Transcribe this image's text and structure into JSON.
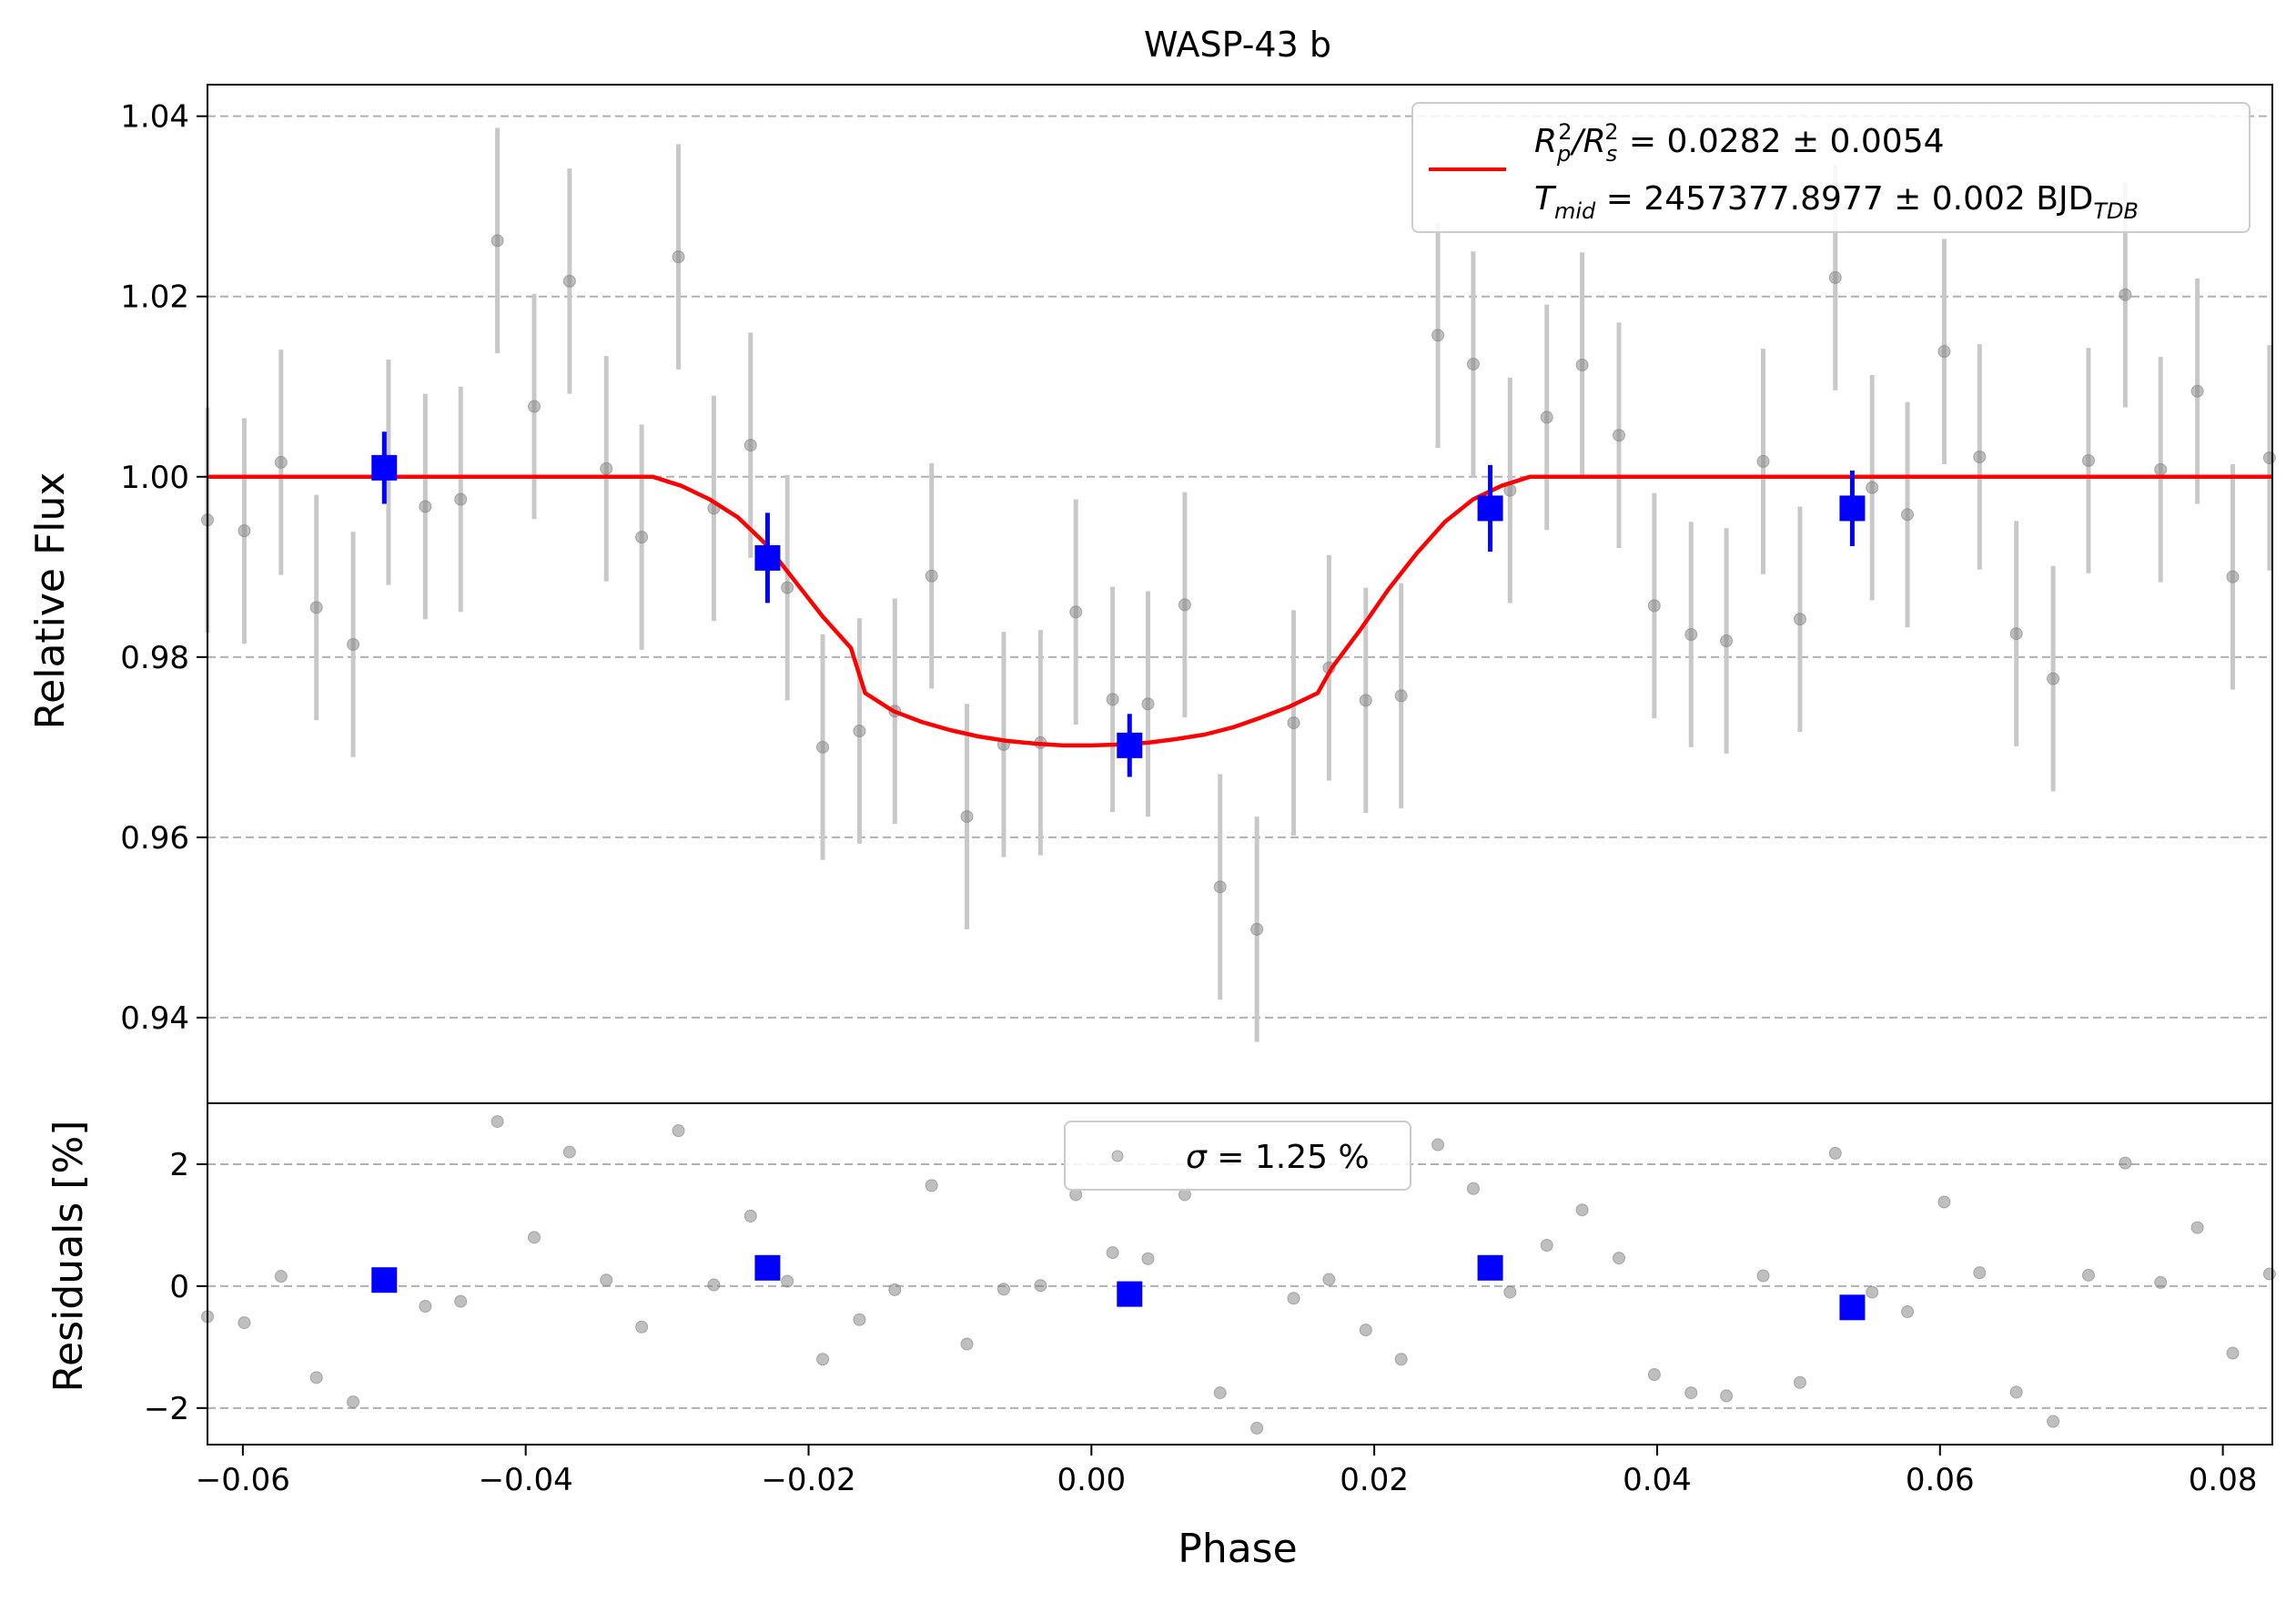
{
  "chart_data": [
    {
      "type": "scatter",
      "panel": "light-curve",
      "title": "WASP-43 b",
      "ylabel": "Relative Flux",
      "xlim": [
        -0.0625,
        0.0835
      ],
      "ylim": [
        0.9305,
        1.0435
      ],
      "grid": true,
      "yticks": [
        {
          "value": 0.94,
          "label": "0.94"
        },
        {
          "value": 0.96,
          "label": "0.96"
        },
        {
          "value": 0.98,
          "label": "0.98"
        },
        {
          "value": 1.0,
          "label": "1.00"
        },
        {
          "value": 1.02,
          "label": "1.02"
        },
        {
          "value": 1.04,
          "label": "1.04"
        }
      ],
      "legend": {
        "position": "top-right",
        "line_color": "#ff0000",
        "line1": {
          "lhs_main": "R",
          "sub1": "p",
          "sup1": "2",
          "slash": "/R",
          "sub2": "s",
          "sup2": "2",
          "rhs": " = 0.0282 ± 0.0054"
        },
        "line2": {
          "lhs_main": "T",
          "sub": "mid",
          "rhs": " = 2457377.8977 ± 0.002 BJD",
          "rhs_sub": "TDB"
        }
      },
      "colors": {
        "data": "#808080",
        "errorbar": "#c8c8c8",
        "binned": "#0000ff",
        "model": "#ff0000"
      },
      "model": {
        "name": "",
        "x": [
          -0.0625,
          -0.031,
          -0.029,
          -0.027,
          -0.025,
          -0.023,
          -0.021,
          -0.019,
          -0.017,
          -0.016,
          -0.014,
          -0.012,
          -0.01,
          -0.008,
          -0.006,
          -0.004,
          -0.002,
          0.0,
          0.002,
          0.004,
          0.006,
          0.008,
          0.01,
          0.012,
          0.014,
          0.016,
          0.017,
          0.019,
          0.021,
          0.023,
          0.025,
          0.027,
          0.029,
          0.031,
          0.0835
        ],
        "y": [
          1.0,
          1.0,
          0.999,
          0.9975,
          0.9955,
          0.9925,
          0.9885,
          0.9845,
          0.981,
          0.976,
          0.974,
          0.9728,
          0.9719,
          0.9712,
          0.9707,
          0.9704,
          0.9702,
          0.9702,
          0.9703,
          0.9705,
          0.9709,
          0.9714,
          0.9722,
          0.9733,
          0.9745,
          0.976,
          0.9788,
          0.983,
          0.9875,
          0.9915,
          0.995,
          0.9975,
          0.999,
          1.0,
          1.0
        ]
      },
      "points": {
        "x": [
          -0.0625,
          -0.0599,
          -0.0573,
          -0.0548,
          -0.0522,
          -0.0497,
          -0.0471,
          -0.0446,
          -0.042,
          -0.0394,
          -0.0369,
          -0.0343,
          -0.0318,
          -0.0292,
          -0.0267,
          -0.0241,
          -0.0215,
          -0.019,
          -0.0164,
          -0.0139,
          -0.0113,
          -0.0088,
          -0.0062,
          -0.0036,
          -0.0011,
          0.0015,
          0.004,
          0.0066,
          0.0091,
          0.0117,
          0.0143,
          0.0168,
          0.0194,
          0.0219,
          0.0245,
          0.027,
          0.0296,
          0.0322,
          0.0347,
          0.0373,
          0.0398,
          0.0424,
          0.0449,
          0.0475,
          0.0501,
          0.0526,
          0.0552,
          0.0577,
          0.0603,
          0.0628,
          0.0654,
          0.068,
          0.0705,
          0.0731,
          0.0756,
          0.0782,
          0.0807,
          0.0833
        ],
        "y": [
          0.9952,
          0.994,
          1.0016,
          0.9855,
          0.9814,
          1.0005,
          0.9967,
          0.9975,
          1.0262,
          1.0078,
          1.0217,
          1.0009,
          0.9933,
          1.0244,
          0.9965,
          1.0035,
          0.9877,
          0.97,
          0.9718,
          0.974,
          0.989,
          0.9623,
          0.9703,
          0.9705,
          0.985,
          0.9753,
          0.9748,
          0.9858,
          0.9545,
          0.9498,
          0.9727,
          0.9788,
          0.9752,
          0.9757,
          1.0157,
          1.0125,
          0.9985,
          1.0066,
          1.0124,
          1.0046,
          0.9857,
          0.9825,
          0.9818,
          1.0017,
          0.9842,
          1.0221,
          0.9988,
          0.9958,
          1.0139,
          1.0022,
          0.9826,
          0.9776,
          1.0018,
          1.0202,
          1.0008,
          1.0095,
          0.9889,
          1.0021
        ],
        "yerr": [
          0.0125,
          0.0125,
          0.0125,
          0.0125,
          0.0125,
          0.0125,
          0.0125,
          0.0125,
          0.0125,
          0.0125,
          0.0125,
          0.0125,
          0.0125,
          0.0125,
          0.0125,
          0.0125,
          0.0125,
          0.0125,
          0.0125,
          0.0125,
          0.0125,
          0.0125,
          0.0125,
          0.0125,
          0.0125,
          0.0125,
          0.0125,
          0.0125,
          0.0125,
          0.0125,
          0.0125,
          0.0125,
          0.0125,
          0.0125,
          0.0125,
          0.0125,
          0.0125,
          0.0125,
          0.0125,
          0.0125,
          0.0125,
          0.0125,
          0.0125,
          0.0125,
          0.0125,
          0.0125,
          0.0125,
          0.0125,
          0.0125,
          0.0125,
          0.0125,
          0.0125,
          0.0125,
          0.0125,
          0.0125,
          0.0125,
          0.0125,
          0.0125
        ]
      },
      "binned": {
        "x": [
          -0.05,
          -0.0229,
          0.0027,
          0.0282,
          0.0538
        ],
        "y": [
          1.001,
          0.991,
          0.9702,
          0.9965,
          0.9965
        ],
        "yerr": [
          0.004,
          0.005,
          0.0035,
          0.0048,
          0.0042
        ]
      }
    },
    {
      "type": "scatter",
      "panel": "residuals",
      "xlabel": "Phase",
      "ylabel": "Residuals [%]",
      "xlim": [
        -0.0625,
        0.0835
      ],
      "ylim": [
        -2.6,
        3.0
      ],
      "grid": true,
      "xticks": [
        {
          "value": -0.06,
          "label": "−0.06"
        },
        {
          "value": -0.04,
          "label": "−0.04"
        },
        {
          "value": -0.02,
          "label": "−0.02"
        },
        {
          "value": 0.0,
          "label": "0.00"
        },
        {
          "value": 0.02,
          "label": "0.02"
        },
        {
          "value": 0.04,
          "label": "0.04"
        },
        {
          "value": 0.06,
          "label": "0.06"
        },
        {
          "value": 0.08,
          "label": "0.08"
        }
      ],
      "yticks": [
        {
          "value": -2,
          "label": "−2"
        },
        {
          "value": 0,
          "label": "0"
        },
        {
          "value": 2,
          "label": "2"
        }
      ],
      "legend": {
        "position": "top-center",
        "sigma": "σ",
        "text": " = 1.25 %"
      },
      "points": {
        "x": [
          -0.0625,
          -0.0599,
          -0.0573,
          -0.0548,
          -0.0522,
          -0.0497,
          -0.0471,
          -0.0446,
          -0.042,
          -0.0394,
          -0.0369,
          -0.0343,
          -0.0318,
          -0.0292,
          -0.0267,
          -0.0241,
          -0.0215,
          -0.019,
          -0.0164,
          -0.0139,
          -0.0113,
          -0.0088,
          -0.0062,
          -0.0036,
          -0.0011,
          0.0015,
          0.004,
          0.0066,
          0.0091,
          0.0117,
          0.0143,
          0.0168,
          0.0194,
          0.0219,
          0.0245,
          0.027,
          0.0296,
          0.0322,
          0.0347,
          0.0373,
          0.0398,
          0.0424,
          0.0449,
          0.0475,
          0.0501,
          0.0526,
          0.0552,
          0.0577,
          0.0603,
          0.0628,
          0.0654,
          0.068,
          0.0705,
          0.0731,
          0.0756,
          0.0782,
          0.0807,
          0.0833
        ],
        "y": [
          -0.5,
          -0.6,
          0.16,
          -1.5,
          -1.9,
          0.08,
          -0.33,
          -0.25,
          2.7,
          0.8,
          2.2,
          0.1,
          -0.67,
          2.55,
          0.02,
          1.15,
          0.08,
          -1.2,
          -0.55,
          -0.06,
          1.65,
          -0.95,
          -0.05,
          0.01,
          1.5,
          0.55,
          0.45,
          1.5,
          -1.75,
          -2.33,
          -0.2,
          0.11,
          -0.72,
          -1.2,
          2.32,
          1.6,
          -0.1,
          0.67,
          1.25,
          0.46,
          -1.45,
          -1.75,
          -1.8,
          0.17,
          -1.58,
          2.18,
          -0.1,
          -0.42,
          1.38,
          0.22,
          -1.74,
          -2.22,
          0.18,
          2.02,
          0.06,
          0.96,
          -1.1,
          0.2
        ]
      },
      "binned": {
        "x": [
          -0.05,
          -0.0229,
          0.0027,
          0.0282,
          0.0538
        ],
        "y": [
          0.1,
          0.3,
          -0.13,
          0.3,
          -0.35
        ]
      }
    }
  ]
}
